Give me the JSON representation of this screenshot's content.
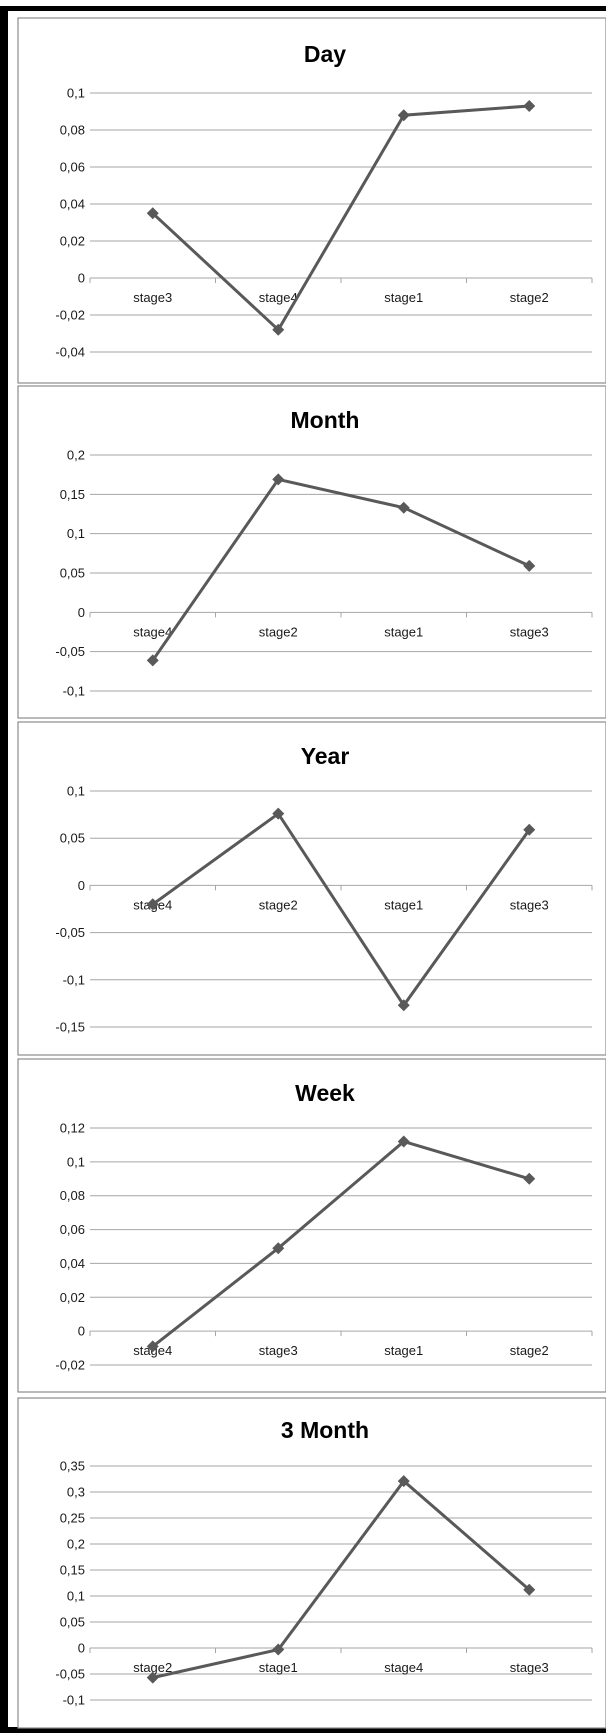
{
  "colors": {
    "series": "#595959",
    "grid": "#a6a6a6",
    "frame": "#000000"
  },
  "chart_data": [
    {
      "type": "line",
      "title": "Day",
      "categories": [
        "stage3",
        "stage4",
        "stage1",
        "stage2"
      ],
      "values": [
        0.035,
        -0.028,
        0.088,
        0.093
      ],
      "ylim": [
        -0.04,
        0.1
      ],
      "yticks": [
        0.1,
        0.08,
        0.06,
        0.04,
        0.02,
        0,
        -0.02,
        -0.04
      ],
      "yticklabels": [
        "0,1",
        "0,08",
        "0,06",
        "0,04",
        "0,02",
        "0",
        "-0,02",
        "-0,04"
      ],
      "grid": true,
      "legend": "none"
    },
    {
      "type": "line",
      "title": "Month",
      "categories": [
        "stage4",
        "stage2",
        "stage1",
        "stage3"
      ],
      "values": [
        -0.061,
        0.169,
        0.133,
        0.059
      ],
      "ylim": [
        -0.1,
        0.2
      ],
      "yticks": [
        0.2,
        0.15,
        0.1,
        0.05,
        0,
        -0.05,
        -0.1
      ],
      "yticklabels": [
        "0,2",
        "0,15",
        "0,1",
        "0,05",
        "0",
        "-0,05",
        "-0,1"
      ],
      "grid": true,
      "legend": "none"
    },
    {
      "type": "line",
      "title": "Year",
      "categories": [
        "stage4",
        "stage2",
        "stage1",
        "stage3"
      ],
      "values": [
        -0.02,
        0.076,
        -0.127,
        0.059
      ],
      "ylim": [
        -0.15,
        0.1
      ],
      "yticks": [
        0.1,
        0.05,
        0,
        -0.05,
        -0.1,
        -0.15
      ],
      "yticklabels": [
        "0,1",
        "0,05",
        "0",
        "-0,05",
        "-0,1",
        "-0,15"
      ],
      "grid": true,
      "legend": "none"
    },
    {
      "type": "line",
      "title": "Week",
      "categories": [
        "stage4",
        "stage3",
        "stage1",
        "stage2"
      ],
      "values": [
        -0.009,
        0.049,
        0.112,
        0.09
      ],
      "ylim": [
        -0.02,
        0.12
      ],
      "yticks": [
        0.12,
        0.1,
        0.08,
        0.06,
        0.04,
        0.02,
        0,
        -0.02
      ],
      "yticklabels": [
        "0,12",
        "0,1",
        "0,08",
        "0,06",
        "0,04",
        "0,02",
        "0",
        "-0,02"
      ],
      "grid": true,
      "legend": "none"
    },
    {
      "type": "line",
      "title": "3 Month",
      "categories": [
        "stage2",
        "stage1",
        "stage4",
        "stage3"
      ],
      "values": [
        -0.057,
        -0.003,
        0.321,
        0.112
      ],
      "ylim": [
        -0.1,
        0.35
      ],
      "yticks": [
        0.35,
        0.3,
        0.25,
        0.2,
        0.15,
        0.1,
        0.05,
        0,
        -0.05,
        -0.1
      ],
      "yticklabels": [
        "0,35",
        "0,3",
        "0,25",
        "0,2",
        "0,15",
        "0,1",
        "0,05",
        "0",
        "-0,05",
        "-0,1"
      ],
      "grid": true,
      "legend": "none"
    }
  ]
}
